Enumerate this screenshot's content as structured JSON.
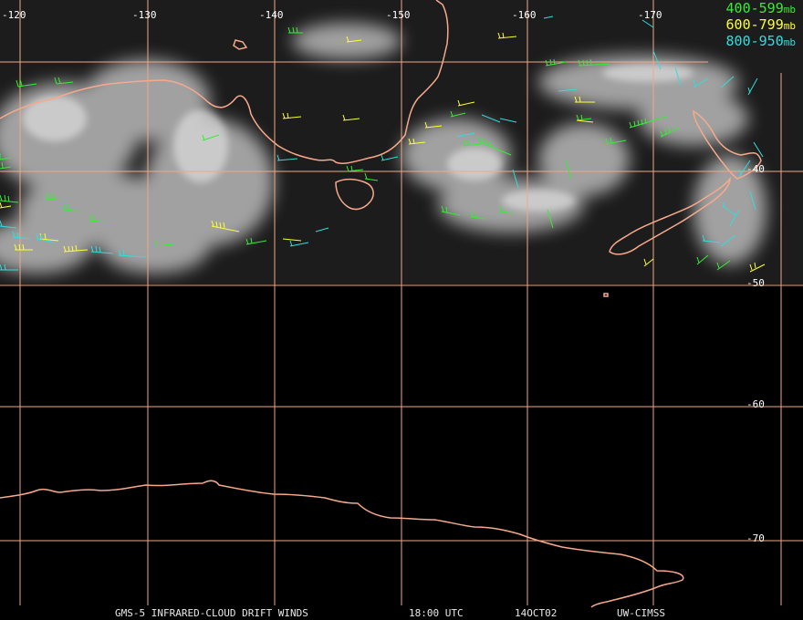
{
  "map": {
    "longitude_labels": [
      "-120",
      "-130",
      "-140",
      "-150",
      "-160",
      "-170"
    ],
    "latitude_labels": [
      "-40",
      "-50",
      "-60",
      "-70"
    ],
    "colors": {
      "grid": "#f0a884",
      "coast": "#f7a98b",
      "level_400_599": "#33ee33",
      "level_600_799": "#ffff33",
      "level_800_950": "#33dddd"
    }
  },
  "legend": {
    "items": [
      {
        "range": "400-599",
        "unit": "mb",
        "color": "#33ee33"
      },
      {
        "range": "600-799",
        "unit": "mb",
        "color": "#ffff33"
      },
      {
        "range": "800-950",
        "unit": "mb",
        "color": "#33dddd"
      }
    ]
  },
  "footer": {
    "product": "GMS-5 INFRARED-CLOUD DRIFT WINDS",
    "time": "18:00 UTC",
    "date": "14OCT02",
    "source": "UW-CIMSS"
  }
}
